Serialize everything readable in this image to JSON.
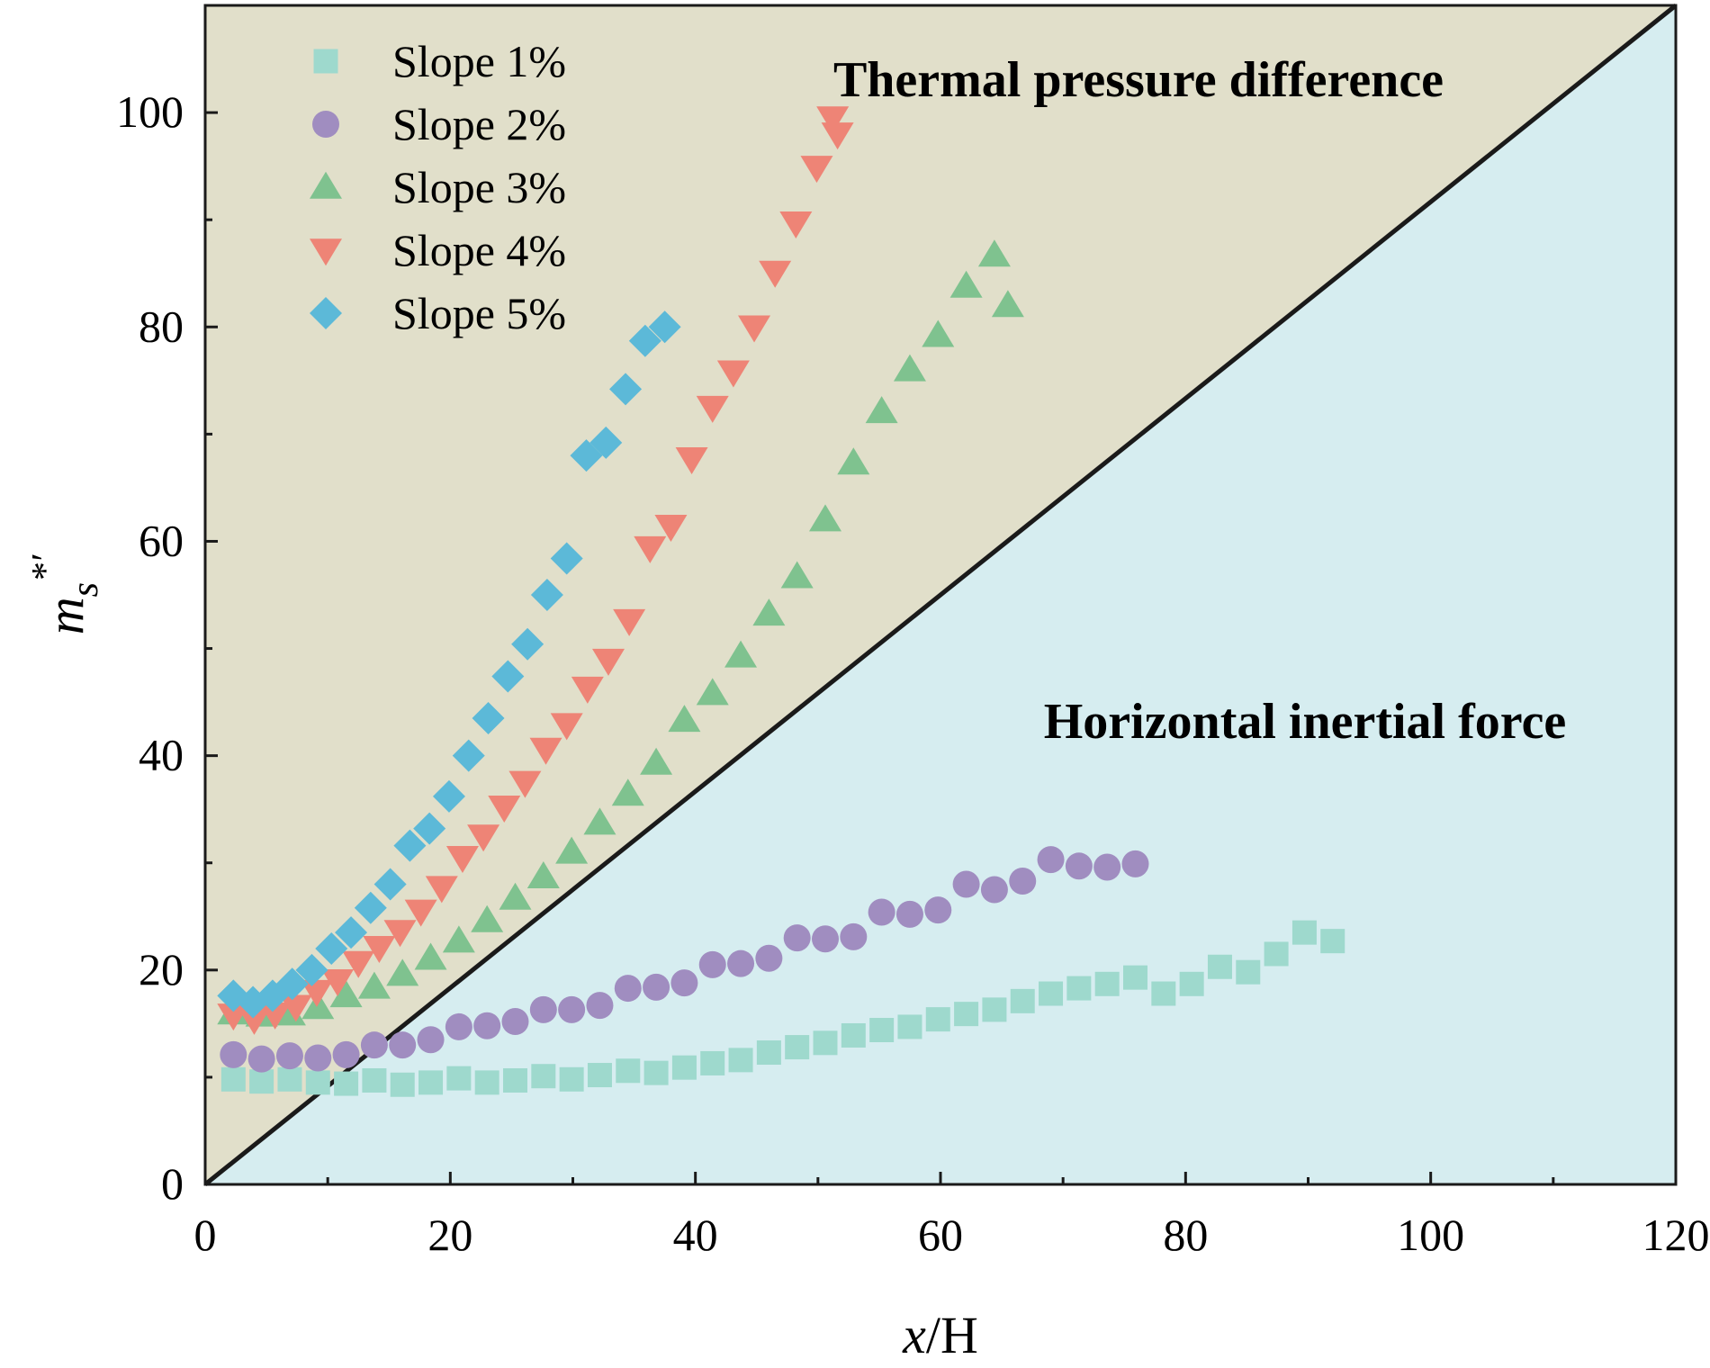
{
  "chart_data": {
    "type": "scatter",
    "title": "",
    "xlabel_italic": "x",
    "xlabel_rest": "/H",
    "ylabel_main": "m",
    "ylabel_sub": "s",
    "ylabel_sup": "*′",
    "xlim": [
      0,
      120
    ],
    "ylim": [
      0,
      110
    ],
    "xticks": [
      0,
      20,
      40,
      60,
      80,
      100,
      120
    ],
    "yticks": [
      0,
      20,
      40,
      60,
      80,
      100
    ],
    "x_minor_step": 10,
    "y_minor_step": 10,
    "grid": false,
    "legend_position": "top-left",
    "boundary_line": {
      "from": [
        0,
        0
      ],
      "to": [
        120,
        110
      ]
    },
    "regions": [
      {
        "name": "upper",
        "label": "Thermal pressure difference",
        "color": "#e1dfca"
      },
      {
        "name": "lower",
        "label": "Horizontal inertial force",
        "color": "#d6edf0"
      }
    ],
    "series": [
      {
        "name": "Slope 1%",
        "marker": "square",
        "color": "#9ed9cd",
        "points": [
          [
            2.3,
            9.8
          ],
          [
            4.6,
            9.6
          ],
          [
            6.9,
            9.8
          ],
          [
            9.2,
            9.5
          ],
          [
            11.5,
            9.4
          ],
          [
            13.8,
            9.7
          ],
          [
            16.1,
            9.3
          ],
          [
            18.4,
            9.5
          ],
          [
            20.7,
            9.9
          ],
          [
            23,
            9.5
          ],
          [
            25.3,
            9.7
          ],
          [
            27.6,
            10.1
          ],
          [
            29.9,
            9.8
          ],
          [
            32.2,
            10.2
          ],
          [
            34.5,
            10.6
          ],
          [
            36.8,
            10.4
          ],
          [
            39.1,
            10.9
          ],
          [
            41.4,
            11.3
          ],
          [
            43.7,
            11.6
          ],
          [
            46,
            12.3
          ],
          [
            48.3,
            12.8
          ],
          [
            50.6,
            13.2
          ],
          [
            52.9,
            13.9
          ],
          [
            55.2,
            14.4
          ],
          [
            57.5,
            14.7
          ],
          [
            59.8,
            15.4
          ],
          [
            62.1,
            15.9
          ],
          [
            64.4,
            16.3
          ],
          [
            66.7,
            17.1
          ],
          [
            69,
            17.8
          ],
          [
            71.3,
            18.3
          ],
          [
            73.6,
            18.7
          ],
          [
            75.9,
            19.3
          ],
          [
            78.2,
            17.8
          ],
          [
            80.5,
            18.7
          ],
          [
            82.8,
            20.3
          ],
          [
            85.1,
            19.8
          ],
          [
            87.4,
            21.5
          ],
          [
            89.7,
            23.5
          ],
          [
            92,
            22.7
          ]
        ]
      },
      {
        "name": "Slope 2%",
        "marker": "circle",
        "color": "#a08dc0",
        "points": [
          [
            2.3,
            12.1
          ],
          [
            4.6,
            11.7
          ],
          [
            6.9,
            12
          ],
          [
            9.2,
            11.8
          ],
          [
            11.5,
            12.1
          ],
          [
            13.8,
            13
          ],
          [
            16.1,
            13
          ],
          [
            18.4,
            13.5
          ],
          [
            20.7,
            14.7
          ],
          [
            23,
            14.8
          ],
          [
            25.3,
            15.2
          ],
          [
            27.6,
            16.3
          ],
          [
            29.9,
            16.3
          ],
          [
            32.2,
            16.7
          ],
          [
            34.5,
            18.3
          ],
          [
            36.8,
            18.4
          ],
          [
            39.1,
            18.8
          ],
          [
            41.4,
            20.5
          ],
          [
            43.7,
            20.6
          ],
          [
            46,
            21.1
          ],
          [
            48.3,
            23
          ],
          [
            50.6,
            22.9
          ],
          [
            52.9,
            23.1
          ],
          [
            55.2,
            25.4
          ],
          [
            57.5,
            25.2
          ],
          [
            59.8,
            25.6
          ],
          [
            62.1,
            28
          ],
          [
            64.4,
            27.5
          ],
          [
            66.7,
            28.3
          ],
          [
            69,
            30.3
          ],
          [
            71.3,
            29.7
          ],
          [
            73.6,
            29.6
          ],
          [
            75.9,
            29.9
          ]
        ]
      },
      {
        "name": "Slope 3%",
        "marker": "triangle-up",
        "color": "#7fc28f",
        "points": [
          [
            2.3,
            16
          ],
          [
            4.6,
            15.8
          ],
          [
            6.9,
            15.9
          ],
          [
            9.2,
            16.5
          ],
          [
            11.5,
            17.6
          ],
          [
            13.8,
            18.4
          ],
          [
            16.1,
            19.6
          ],
          [
            18.4,
            21.1
          ],
          [
            20.7,
            22.7
          ],
          [
            23,
            24.6
          ],
          [
            25.3,
            26.7
          ],
          [
            27.6,
            28.7
          ],
          [
            29.9,
            31
          ],
          [
            32.2,
            33.7
          ],
          [
            34.5,
            36.4
          ],
          [
            36.8,
            39.3
          ],
          [
            39.1,
            43.3
          ],
          [
            41.4,
            45.8
          ],
          [
            43.7,
            49.3
          ],
          [
            46,
            53.2
          ],
          [
            48.3,
            56.7
          ],
          [
            50.6,
            62
          ],
          [
            52.9,
            67.3
          ],
          [
            55.2,
            72.1
          ],
          [
            57.5,
            76
          ],
          [
            59.8,
            79.2
          ],
          [
            62.1,
            83.8
          ],
          [
            64.4,
            86.7
          ],
          [
            65.5,
            82
          ]
        ]
      },
      {
        "name": "Slope 4%",
        "marker": "triangle-down",
        "color": "#ee8476",
        "points": [
          [
            2.3,
            15.8
          ],
          [
            4,
            15.4
          ],
          [
            5.7,
            15.9
          ],
          [
            7.4,
            16.6
          ],
          [
            9.1,
            18
          ],
          [
            10.8,
            19
          ],
          [
            12.5,
            20.7
          ],
          [
            14.2,
            22.1
          ],
          [
            15.9,
            23.6
          ],
          [
            17.6,
            25.5
          ],
          [
            19.3,
            27.7
          ],
          [
            21,
            30.5
          ],
          [
            22.7,
            32.5
          ],
          [
            24.4,
            35.2
          ],
          [
            26.1,
            37.5
          ],
          [
            27.8,
            40.6
          ],
          [
            29.5,
            42.9
          ],
          [
            31.2,
            46.3
          ],
          [
            32.9,
            48.9
          ],
          [
            34.6,
            52.6
          ],
          [
            36.3,
            59.4
          ],
          [
            38,
            61.4
          ],
          [
            39.7,
            67.7
          ],
          [
            41.4,
            72.5
          ],
          [
            43.1,
            75.8
          ],
          [
            44.8,
            80
          ],
          [
            46.5,
            85.1
          ],
          [
            48.2,
            89.7
          ],
          [
            49.9,
            94.9
          ],
          [
            51.6,
            98
          ],
          [
            51.2,
            99.5
          ]
        ]
      },
      {
        "name": "Slope 5%",
        "marker": "diamond",
        "color": "#5cb9d8",
        "points": [
          [
            2.3,
            17.6
          ],
          [
            3.9,
            17
          ],
          [
            5.5,
            17.6
          ],
          [
            7.1,
            18.7
          ],
          [
            8.7,
            20
          ],
          [
            10.3,
            22
          ],
          [
            11.9,
            23.5
          ],
          [
            13.5,
            25.8
          ],
          [
            15.1,
            28
          ],
          [
            16.7,
            31.6
          ],
          [
            18.3,
            33.2
          ],
          [
            19.9,
            36.2
          ],
          [
            21.5,
            40
          ],
          [
            23.1,
            43.5
          ],
          [
            24.7,
            47.4
          ],
          [
            26.3,
            50.4
          ],
          [
            27.9,
            55
          ],
          [
            29.5,
            58.4
          ],
          [
            31.1,
            68
          ],
          [
            32.7,
            69.2
          ],
          [
            34.3,
            74.2
          ],
          [
            35.9,
            78.7
          ],
          [
            37.5,
            80
          ]
        ]
      }
    ]
  }
}
